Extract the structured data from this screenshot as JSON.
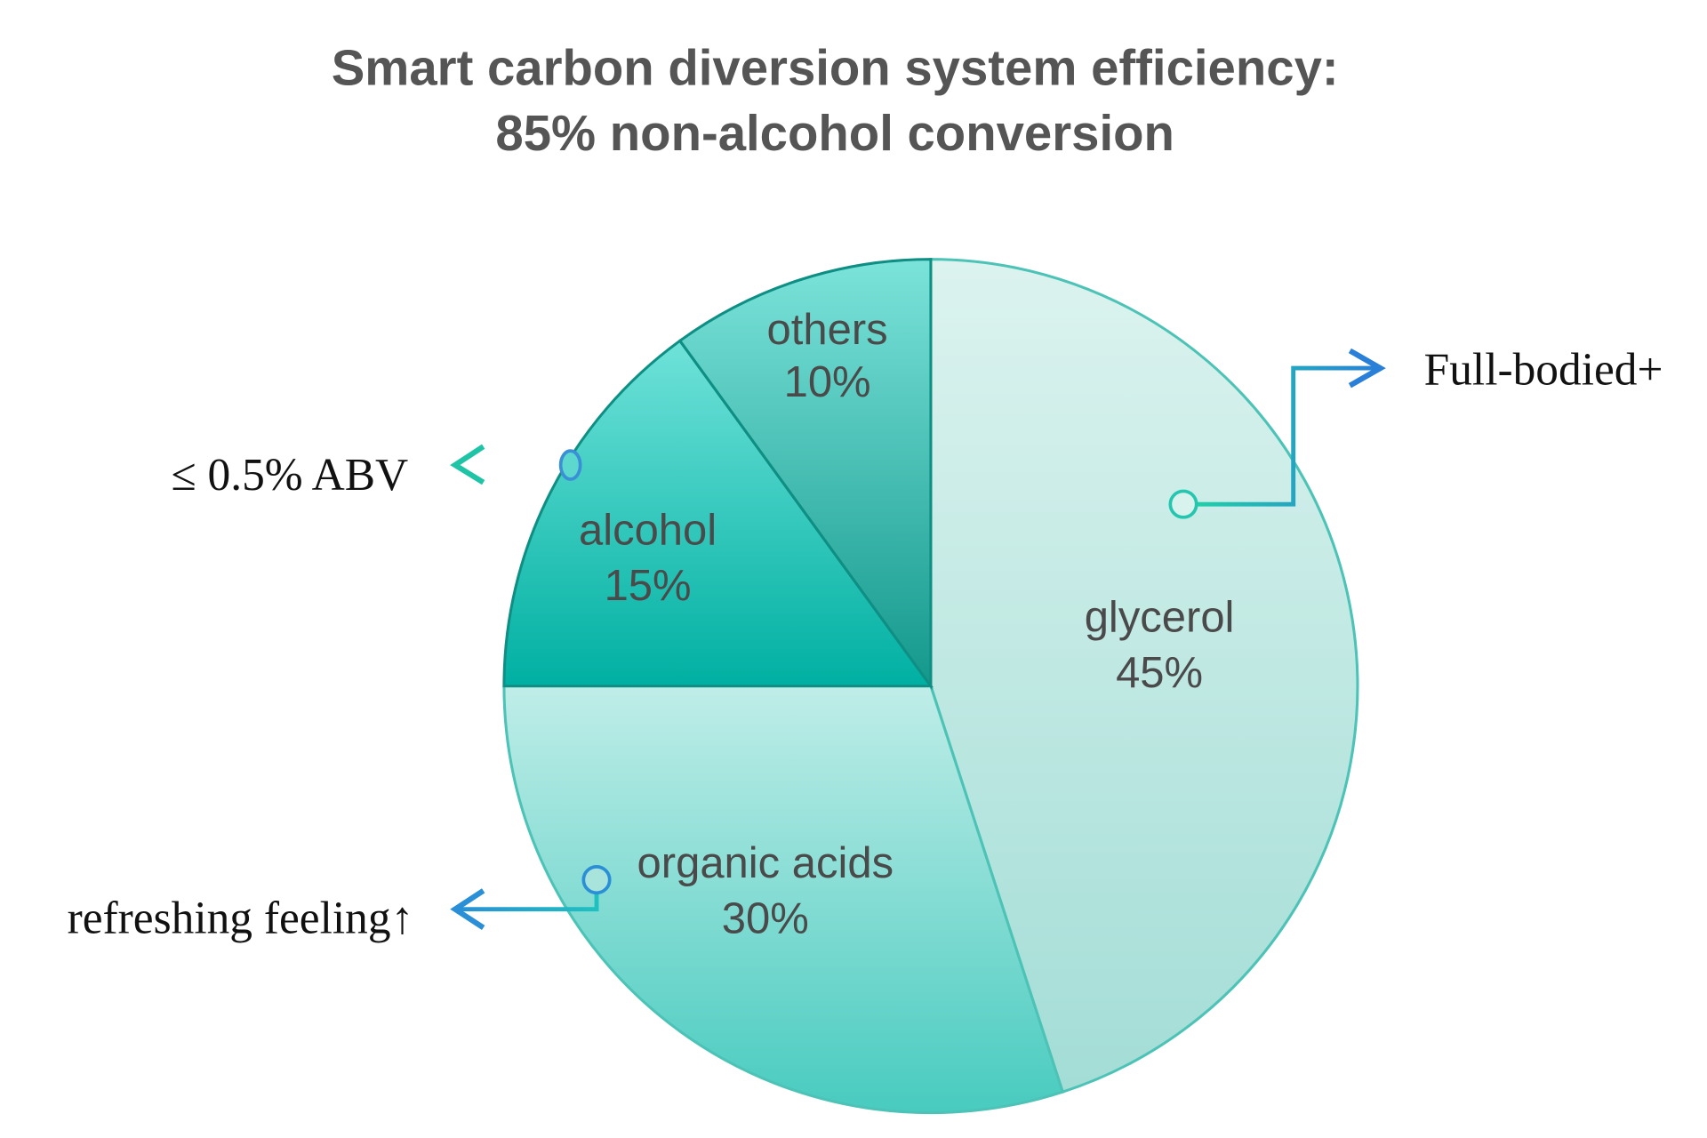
{
  "chart_data": {
    "type": "pie",
    "title": [
      "Smart carbon diversion system efficiency:",
      "85% non-alcohol conversion"
    ],
    "slices": [
      {
        "label": "glycerol",
        "value": 45,
        "value_label": "45%",
        "color_top": "#dcf3ef",
        "color_bottom": "#a3ddd6"
      },
      {
        "label": "organic acids",
        "value": 30,
        "value_label": "30%",
        "color_top": "#c0ede8",
        "color_bottom": "#48cbbf"
      },
      {
        "label": "alcohol",
        "value": 15,
        "value_label": "15%",
        "color_top": "#6fe2d9",
        "color_bottom": "#00b0a2"
      },
      {
        "label": "others",
        "value": 10,
        "value_label": "10%",
        "color_top": "#7be3da",
        "color_bottom": "#14988c"
      }
    ],
    "start": "top",
    "direction": "clockwise",
    "annotations": [
      {
        "slice": "glycerol",
        "text": "Full-bodied+",
        "side": "right"
      },
      {
        "slice": "alcohol",
        "text": "≤ 0.5% ABV",
        "side": "left"
      },
      {
        "slice": "organic acids",
        "text": "refreshing feeling↑",
        "side": "left"
      }
    ],
    "edge_color": "#4cc3b6",
    "arrow_color": "#2a8fd6"
  }
}
